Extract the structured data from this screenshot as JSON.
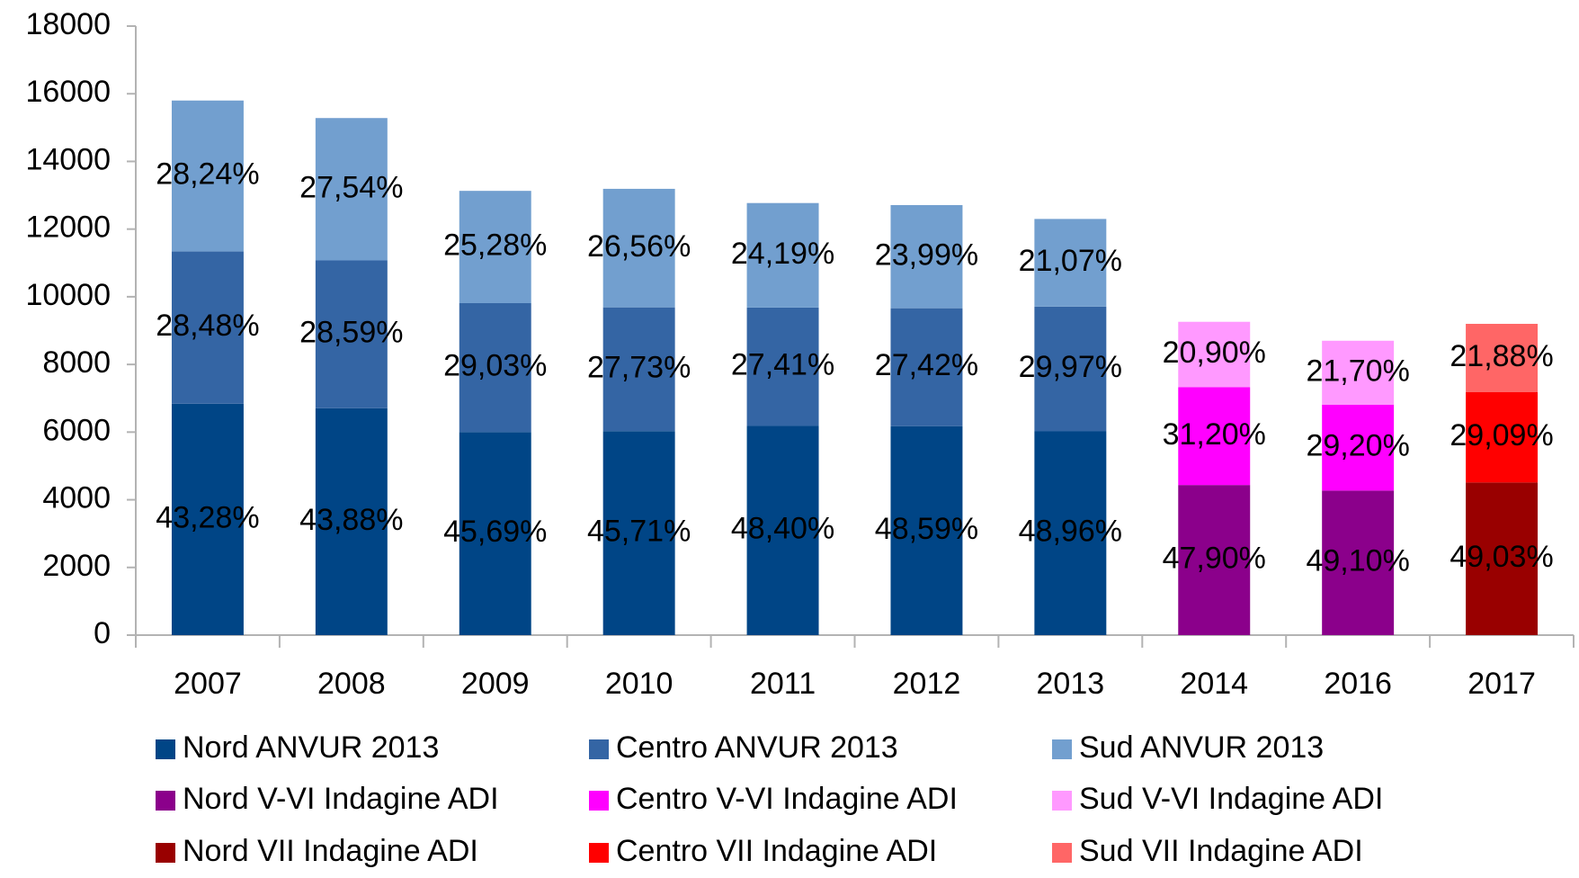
{
  "chart_data": {
    "type": "stacked_bar",
    "categories": [
      "2007",
      "2008",
      "2009",
      "2010",
      "2011",
      "2012",
      "2013",
      "2014",
      "2016",
      "2017"
    ],
    "ylim": [
      0,
      18000
    ],
    "yticks": [
      0,
      2000,
      4000,
      6000,
      8000,
      10000,
      12000,
      14000,
      16000,
      18000
    ],
    "grid": false,
    "legend": "bottom",
    "series": [
      {
        "name": "Nord ANVUR 2013",
        "color": "#004586",
        "values": [
          6838,
          6705,
          5999,
          6029,
          6181,
          6176,
          6022,
          null,
          null,
          null
        ],
        "value_labels": [
          "43,28%",
          "43,88%",
          "45,69%",
          "45,71%",
          "48,40%",
          "48,59%",
          "48,96%",
          null,
          null,
          null
        ]
      },
      {
        "name": "Centro ANVUR 2013",
        "color": "#3465a4",
        "values": [
          4500,
          4369,
          3812,
          3658,
          3500,
          3485,
          3686,
          null,
          null,
          null
        ],
        "value_labels": [
          "28,48%",
          "28,59%",
          "29,03%",
          "27,73%",
          "27,41%",
          "27,42%",
          "29,97%",
          null,
          null,
          null
        ]
      },
      {
        "name": "Sud ANVUR 2013",
        "color": "#729fcf",
        "values": [
          4462,
          4208,
          3319,
          3503,
          3089,
          3049,
          2592,
          null,
          null,
          null
        ],
        "value_labels": [
          "28,24%",
          "27,54%",
          "25,28%",
          "26,56%",
          "24,19%",
          "23,99%",
          "21,07%",
          null,
          null,
          null
        ]
      },
      {
        "name": "Nord V-VI Indagine ADI",
        "color": "#8b008b",
        "values": [
          null,
          null,
          null,
          null,
          null,
          null,
          null,
          4436,
          4272,
          null
        ],
        "value_labels": [
          null,
          null,
          null,
          null,
          null,
          null,
          null,
          "47,90%",
          "49,10%",
          null
        ]
      },
      {
        "name": "Centro V-VI Indagine ADI",
        "color": "#ff00ff",
        "values": [
          null,
          null,
          null,
          null,
          null,
          null,
          null,
          2889,
          2540,
          null
        ],
        "value_labels": [
          null,
          null,
          null,
          null,
          null,
          null,
          null,
          "31,20%",
          "29,20%",
          null
        ]
      },
      {
        "name": "Sud V-VI Indagine ADI",
        "color": "#ff99ff",
        "values": [
          null,
          null,
          null,
          null,
          null,
          null,
          null,
          1935,
          1888,
          null
        ],
        "value_labels": [
          null,
          null,
          null,
          null,
          null,
          null,
          null,
          "20,90%",
          "21,70%",
          null
        ]
      },
      {
        "name": "Nord VII Indagine ADI",
        "color": "#990000",
        "values": [
          null,
          null,
          null,
          null,
          null,
          null,
          null,
          null,
          null,
          4511
        ],
        "value_labels": [
          null,
          null,
          null,
          null,
          null,
          null,
          null,
          null,
          null,
          "49,03%"
        ]
      },
      {
        "name": "Centro VII Indagine ADI",
        "color": "#ff0000",
        "values": [
          null,
          null,
          null,
          null,
          null,
          null,
          null,
          null,
          null,
          2676
        ],
        "value_labels": [
          null,
          null,
          null,
          null,
          null,
          null,
          null,
          null,
          null,
          "29,09%"
        ]
      },
      {
        "name": "Sud VII Indagine ADI",
        "color": "#ff6666",
        "values": [
          null,
          null,
          null,
          null,
          null,
          null,
          null,
          null,
          null,
          2013
        ],
        "value_labels": [
          null,
          null,
          null,
          null,
          null,
          null,
          null,
          null,
          null,
          "21,88%"
        ]
      }
    ]
  }
}
